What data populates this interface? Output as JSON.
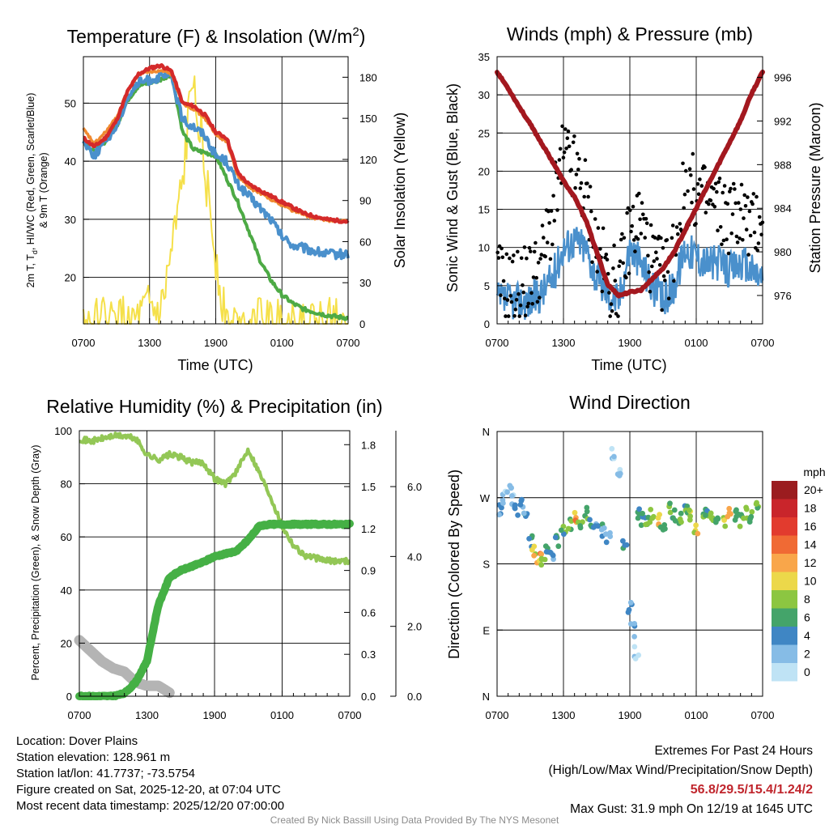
{
  "colors": {
    "red": "#d42a2a",
    "green": "#4daa45",
    "blue": "#4a90cc",
    "orange": "#f08a30",
    "yellow": "#f5e04a",
    "maroon": "#a3181f",
    "gray": "#b4b4b4",
    "rh": "#93c756",
    "precip": "#45b045",
    "gust": "#000000"
  },
  "time_ticks": [
    "0700",
    "1300",
    "1900",
    "0100",
    "0700"
  ],
  "charts": [
    {
      "id": "temp",
      "title_main": "Temperature (F) & Insolation (W/m",
      "title_sup": "2",
      "title_end": ")",
      "xlabel": "Time (UTC)",
      "ylabel_line1": "2m T, T",
      "ylabel_sub": "d",
      "ylabel_mid": ", HI/WC (Red, Green, Scarlet/Blue)",
      "ylabel_line2": "& 9m T (Orange)",
      "ylabel_right": "Solar Insolation (Yellow)",
      "yticks": [
        "20",
        "30",
        "40",
        "50"
      ],
      "yticks_right": [
        "0",
        "30",
        "60",
        "90",
        "120",
        "150",
        "180"
      ]
    },
    {
      "id": "wind",
      "title": "Winds (mph) & Pressure (mb)",
      "xlabel": "Time (UTC)",
      "ylabel": "Sonic Wind & Gust (Blue, Black)",
      "ylabel_right": "Station Pressure (Maroon)",
      "yticks": [
        "0",
        "5",
        "10",
        "15",
        "20",
        "25",
        "30",
        "35"
      ],
      "yticks_right": [
        "976",
        "980",
        "984",
        "988",
        "992",
        "996"
      ]
    },
    {
      "id": "rh",
      "title": "Relative Humidity (%) & Precipitation (in)",
      "ylabel": "Percent, Precipitation (Green), & Snow Depth (Gray)",
      "yticks": [
        "0",
        "20",
        "40",
        "60",
        "80",
        "100"
      ],
      "yticks_mid": [
        "0.0",
        "0.3",
        "0.6",
        "0.9",
        "1.2",
        "1.5",
        "1.8"
      ],
      "yticks_right": [
        "0.0",
        "2.0",
        "4.0",
        "6.0"
      ]
    },
    {
      "id": "dir",
      "title": "Wind Direction",
      "ylabel": "Direction (Colored By Speed)",
      "yticks": [
        "N",
        "E",
        "S",
        "W",
        "N"
      ],
      "legend_title": "mph",
      "legend_labels": [
        "20+",
        "18",
        "16",
        "14",
        "12",
        "10",
        "8",
        "6",
        "4",
        "2",
        "0"
      ],
      "legend_colors": [
        "#9b1c1f",
        "#c9252b",
        "#e23b2e",
        "#f06a34",
        "#f9a64a",
        "#ecd84a",
        "#8cc641",
        "#44a46a",
        "#3f86c4",
        "#86bce6",
        "#bfe3f5"
      ]
    }
  ],
  "chart_data": [
    {
      "type": "line",
      "title": "Temperature (F) & Insolation (W/m2)",
      "xlabel": "Time (UTC)",
      "x": [
        0,
        1,
        2,
        3,
        4,
        5,
        6,
        7,
        8,
        9,
        10,
        11,
        12,
        13,
        14,
        15,
        16,
        17,
        18,
        19,
        20,
        21,
        22,
        23,
        24
      ],
      "xlim": [
        0,
        24
      ],
      "ylim": [
        12,
        58
      ],
      "ylim_right": [
        0,
        195
      ],
      "series": [
        {
          "name": "2m T (Red)",
          "axis": "left",
          "values": [
            44,
            42.5,
            44,
            47,
            52,
            55,
            56,
            56.5,
            55.5,
            50,
            49.5,
            48,
            45,
            44,
            38,
            36,
            35,
            34,
            33,
            32,
            31,
            30.5,
            30,
            29.8,
            29.6
          ]
        },
        {
          "name": "9m T (Orange)",
          "axis": "left",
          "values": [
            45.5,
            43,
            45,
            47.5,
            52,
            55,
            55.5,
            55.5,
            55,
            50,
            49,
            47.5,
            44.5,
            43.5,
            37.5,
            35.5,
            34.5,
            33.5,
            32.5,
            31.5,
            30.8,
            30.2,
            29.9,
            29.7,
            29.6
          ]
        },
        {
          "name": "HI/WC (Blue)",
          "axis": "left",
          "values": [
            43.5,
            41,
            43.5,
            46,
            51,
            53.5,
            54,
            54.5,
            54.5,
            47,
            46,
            44.5,
            41,
            40,
            36,
            34,
            32,
            30,
            27,
            25.5,
            25,
            24.5,
            24,
            24,
            24
          ]
        },
        {
          "name": "Td (Green)",
          "axis": "left",
          "values": [
            43.5,
            41.5,
            43.5,
            46,
            50.5,
            53,
            53.5,
            54,
            55,
            45,
            42,
            41.5,
            41,
            37,
            33,
            28,
            23,
            19.5,
            17,
            15.5,
            14.5,
            14,
            13.5,
            13.2,
            13
          ]
        },
        {
          "name": "Solar Insolation (Yellow)",
          "axis": "right",
          "values": [
            0,
            0,
            0,
            0,
            0,
            0,
            10,
            5,
            50,
            100,
            190,
            110,
            50,
            0,
            0,
            0,
            0,
            0,
            0,
            0,
            0,
            0,
            0,
            0,
            0
          ]
        }
      ]
    },
    {
      "type": "line",
      "title": "Winds (mph) & Pressure (mb)",
      "xlabel": "Time (UTC)",
      "x": [
        0,
        1,
        2,
        3,
        4,
        5,
        6,
        7,
        8,
        9,
        10,
        11,
        12,
        13,
        14,
        15,
        16,
        17,
        18,
        19,
        20,
        21,
        22,
        23,
        24
      ],
      "xlim": [
        0,
        24
      ],
      "ylim": [
        0,
        35
      ],
      "ylim_right": [
        973.4,
        997.9
      ],
      "series": [
        {
          "name": "Sonic Wind (Blue)",
          "axis": "left",
          "values": [
            3,
            3,
            3,
            3,
            4,
            6,
            10,
            11,
            10,
            6,
            4,
            3,
            10,
            8,
            5,
            3,
            5,
            10,
            9,
            8,
            8,
            7,
            8,
            7,
            6
          ]
        },
        {
          "name": "Gust (Black)",
          "axis": "left",
          "values": [
            6,
            5,
            5,
            6,
            8,
            14,
            22,
            20,
            17,
            10,
            6,
            5,
            12,
            14,
            8,
            6,
            10,
            18,
            17,
            16,
            15,
            14,
            15,
            12,
            15
          ]
        },
        {
          "name": "Station Pressure (Maroon)",
          "axis": "right",
          "values": [
            996.5,
            995,
            993.3,
            991.7,
            990,
            988.3,
            986.5,
            985,
            983,
            980,
            977,
            976,
            976.3,
            976.5,
            977.5,
            978.5,
            980,
            982,
            984,
            986,
            988,
            990,
            992,
            994.5,
            996.5
          ]
        }
      ]
    },
    {
      "type": "line",
      "title": "Relative Humidity (%) & Precipitation (in)",
      "x": [
        0,
        1,
        2,
        3,
        4,
        5,
        6,
        7,
        8,
        9,
        10,
        11,
        12,
        13,
        14,
        15,
        16,
        17,
        18,
        19,
        20,
        21,
        22,
        23,
        24
      ],
      "xlim": [
        0,
        24
      ],
      "ylim": [
        0,
        100
      ],
      "ylim_mid": [
        0,
        1.9
      ],
      "ylim_right": [
        0,
        7.6
      ],
      "series": [
        {
          "name": "Relative Humidity (Light Green)",
          "axis": "left",
          "values": [
            97,
            96,
            97,
            98,
            98,
            97,
            91,
            89,
            91,
            90,
            88,
            88,
            82,
            80,
            85,
            93,
            84,
            75,
            64,
            57,
            53,
            52,
            51,
            51,
            51
          ]
        },
        {
          "name": "Precipitation (Green)",
          "axis": "mid",
          "values": [
            0,
            0,
            0,
            0,
            0.02,
            0.1,
            0.25,
            0.65,
            0.85,
            0.9,
            0.93,
            0.96,
            1.0,
            1.02,
            1.04,
            1.12,
            1.22,
            1.23,
            1.23,
            1.23,
            1.23,
            1.23,
            1.23,
            1.23,
            1.23
          ]
        },
        {
          "name": "Snow Depth (Gray)",
          "axis": "right",
          "values": [
            1.6,
            1.3,
            1.0,
            0.8,
            0.7,
            0.4,
            0.3,
            0.3,
            0.1,
            null,
            null,
            null,
            null,
            null,
            null,
            null,
            null,
            null,
            null,
            null,
            null,
            null,
            null,
            null,
            null
          ]
        }
      ]
    },
    {
      "type": "scatter",
      "title": "Wind Direction",
      "ylabel": "Direction (Colored By Speed)",
      "xlim": [
        0,
        24
      ],
      "ylim": [
        0,
        360
      ],
      "x": [
        0.3,
        0.7,
        1.1,
        1.4,
        1.8,
        2.2,
        2.6,
        3.0,
        3.4,
        3.8,
        4.2,
        4.6,
        5.0,
        5.5,
        6.0,
        6.5,
        7.0,
        7.5,
        8.0,
        8.5,
        9.0,
        9.5,
        10.0,
        10.5,
        11.0,
        11.5,
        12.0,
        12.3,
        12.6,
        12.9,
        13.2,
        13.5,
        14.0,
        14.5,
        15.0,
        15.5,
        16.0,
        16.5,
        17.0,
        17.5,
        18.0,
        18.5,
        19.0,
        19.5,
        20.0,
        20.5,
        21.0,
        21.5,
        22.0,
        22.5,
        23.0,
        23.5
      ],
      "y": [
        255,
        270,
        285,
        265,
        255,
        260,
        245,
        210,
        195,
        190,
        185,
        200,
        195,
        210,
        225,
        235,
        245,
        230,
        250,
        235,
        240,
        225,
        215,
        330,
        300,
        210,
        120,
        90,
        60,
        250,
        240,
        235,
        245,
        240,
        230,
        255,
        245,
        240,
        250,
        245,
        230,
        240,
        250,
        245,
        240,
        235,
        250,
        245,
        240,
        250,
        245,
        260
      ],
      "speeds": [
        3,
        2,
        1,
        2,
        4,
        3,
        4,
        6,
        10,
        12,
        8,
        6,
        4,
        5,
        6,
        8,
        12,
        8,
        6,
        4,
        3,
        4,
        3,
        1,
        2,
        4,
        3,
        2,
        1,
        5,
        6,
        7,
        8,
        10,
        6,
        8,
        5,
        7,
        6,
        9,
        10,
        8,
        6,
        7,
        6,
        8,
        12,
        7,
        6,
        8,
        7,
        6
      ]
    }
  ],
  "footer": {
    "location": "Location: Dover Plains",
    "elevation": "Station elevation: 128.961 m",
    "latlon": "Station lat/lon: 41.7737; -73.5754",
    "created": "Figure created on Sat, 2025-12-20, at 07:04 UTC",
    "recent": "Most recent data timestamp: 2025/12/20 07:00:00"
  },
  "extremes": {
    "title": "Extremes For Past 24 Hours",
    "subtitle": "(High/Low/Max Wind/Precipitation/Snow Depth)",
    "values": "56.8/29.5/15.4/1.24/2",
    "gust": "Max Gust: 31.9 mph On 12/19 at 1645 UTC"
  },
  "credit": "Created By Nick Bassill Using Data Provided By The NYS Mesonet"
}
